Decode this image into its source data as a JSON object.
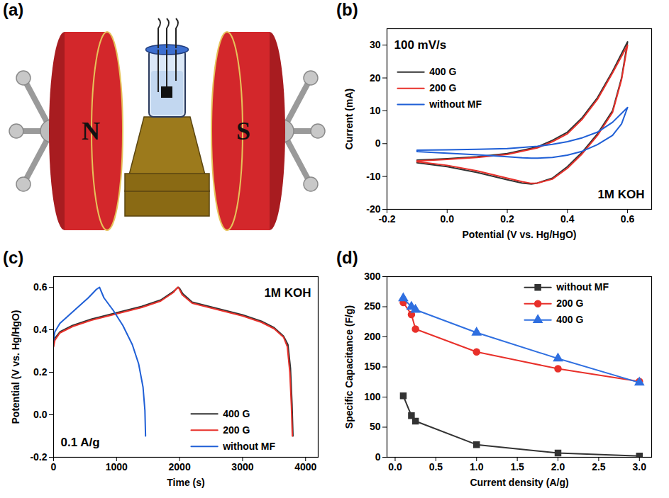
{
  "chart_data": [
    {
      "type": "diagram",
      "panel": "(a)",
      "labels": [
        "N",
        "S"
      ]
    },
    {
      "type": "line",
      "panel": "(b)",
      "annotations": [
        "100 mV/s",
        "1M KOH"
      ],
      "x_label": "Potential (V vs. Hg/HgO)",
      "y_label": "Current (mA)",
      "xlim": [
        -0.2,
        0.68
      ],
      "xticks": [
        -0.2,
        {
          "value": 0,
          "label": "0.0"
        },
        0.2,
        0.4,
        0.6
      ],
      "ylim": [
        -20,
        35
      ],
      "yticks": [
        -20,
        -10,
        0,
        10,
        20,
        30
      ],
      "grid": false,
      "legend": "top-left",
      "series": [
        {
          "name": "400 G",
          "color": "#333333",
          "x": [
            -0.1,
            0.0,
            0.1,
            0.2,
            0.3,
            0.35,
            0.4,
            0.45,
            0.5,
            0.55,
            0.6,
            0.58,
            0.55,
            0.5,
            0.45,
            0.4,
            0.35,
            0.3,
            0.28,
            0.25,
            0.2,
            0.1,
            0.0,
            -0.1,
            -0.1
          ],
          "values": [
            -5,
            -4.6,
            -4,
            -3,
            -1,
            1,
            3.5,
            8,
            14,
            22,
            31,
            20,
            10,
            3,
            -2.5,
            -7,
            -10.5,
            -12,
            -12.3,
            -12,
            -11,
            -8.8,
            -7,
            -5.8,
            -5
          ]
        },
        {
          "name": "200 G",
          "color": "#e8302a",
          "x": [
            -0.1,
            0.0,
            0.1,
            0.2,
            0.3,
            0.35,
            0.4,
            0.45,
            0.5,
            0.55,
            0.6,
            0.58,
            0.55,
            0.5,
            0.45,
            0.4,
            0.35,
            0.3,
            0.28,
            0.25,
            0.2,
            0.1,
            0.0,
            -0.1,
            -0.1
          ],
          "values": [
            -5.3,
            -4.8,
            -4.2,
            -3.3,
            -1.3,
            0.6,
            3,
            7.5,
            13.5,
            21.5,
            30,
            19.5,
            9.5,
            2.5,
            -3,
            -7.5,
            -10.8,
            -12,
            -12.1,
            -11.6,
            -10.5,
            -8.3,
            -6.6,
            -5.5,
            -5.3
          ]
        },
        {
          "name": "without MF",
          "color": "#1f5fd6",
          "x": [
            -0.1,
            0.0,
            0.1,
            0.2,
            0.3,
            0.35,
            0.4,
            0.45,
            0.5,
            0.55,
            0.6,
            0.58,
            0.55,
            0.5,
            0.45,
            0.4,
            0.35,
            0.3,
            0.28,
            0.25,
            0.2,
            0.1,
            0.0,
            -0.1,
            -0.1
          ],
          "values": [
            -2,
            -1.9,
            -1.7,
            -1.5,
            -0.8,
            -0.2,
            0.6,
            1.8,
            3.5,
            6.5,
            11,
            6,
            2.5,
            -0.3,
            -2.3,
            -3.5,
            -4.2,
            -4.4,
            -4.4,
            -4.3,
            -4,
            -3.4,
            -2.9,
            -2.4,
            -2
          ]
        }
      ]
    },
    {
      "type": "line",
      "panel": "(c)",
      "annotations": [
        "1M KOH",
        "0.1 A/g"
      ],
      "x_label": "Time (s)",
      "y_label": "Potential (V vs. Hg/HgO)",
      "xlim": [
        0,
        4200
      ],
      "xticks": [
        0,
        1000,
        2000,
        3000,
        4000
      ],
      "ylim": [
        -0.2,
        0.65
      ],
      "yticks": [
        -0.2,
        {
          "value": 0,
          "label": "0.0"
        },
        0.2,
        0.4,
        0.6
      ],
      "grid": false,
      "legend": "bottom-right",
      "series": [
        {
          "name": "400 G",
          "color": "#333333",
          "x": [
            0,
            20,
            100,
            300,
            600,
            1000,
            1400,
            1700,
            1900,
            1980,
            2000,
            2050,
            2200,
            2600,
            3000,
            3300,
            3500,
            3650,
            3720,
            3760,
            3785,
            3800
          ],
          "values": [
            0.33,
            0.36,
            0.39,
            0.42,
            0.45,
            0.48,
            0.51,
            0.54,
            0.58,
            0.6,
            0.595,
            0.57,
            0.53,
            0.5,
            0.47,
            0.44,
            0.41,
            0.37,
            0.33,
            0.22,
            0.05,
            -0.1
          ]
        },
        {
          "name": "200 G",
          "color": "#e8302a",
          "x": [
            0,
            20,
            100,
            300,
            600,
            1000,
            1400,
            1700,
            1900,
            1970,
            1990,
            2040,
            2200,
            2600,
            3000,
            3300,
            3500,
            3650,
            3710,
            3750,
            3775,
            3790
          ],
          "values": [
            0.32,
            0.35,
            0.385,
            0.415,
            0.445,
            0.475,
            0.505,
            0.535,
            0.575,
            0.6,
            0.595,
            0.565,
            0.525,
            0.495,
            0.465,
            0.435,
            0.405,
            0.365,
            0.32,
            0.2,
            0.04,
            -0.1
          ]
        },
        {
          "name": "without MF",
          "color": "#1f5fd6",
          "x": [
            0,
            20,
            100,
            250,
            400,
            550,
            680,
            730,
            750,
            800,
            950,
            1100,
            1250,
            1350,
            1420,
            1450,
            1460
          ],
          "values": [
            0.35,
            0.39,
            0.43,
            0.47,
            0.51,
            0.55,
            0.59,
            0.6,
            0.585,
            0.55,
            0.49,
            0.42,
            0.33,
            0.24,
            0.13,
            0.02,
            -0.1
          ]
        }
      ]
    },
    {
      "type": "line",
      "panel": "(d)",
      "x_label": "Current density (A/g)",
      "y_label": "Specific Capacitance (F/g)",
      "x": [
        0.1,
        0.2,
        0.25,
        1,
        2,
        3
      ],
      "xlim": [
        -0.1,
        3.15
      ],
      "xticks": [
        {
          "value": 0,
          "label": "0.0"
        },
        0.5,
        {
          "value": 1,
          "label": "1.0"
        },
        1.5,
        {
          "value": 2,
          "label": "2.0"
        },
        2.5,
        {
          "value": 3,
          "label": "3.0"
        }
      ],
      "ylim": [
        0,
        300
      ],
      "yticks": [
        0,
        50,
        100,
        150,
        200,
        250,
        300
      ],
      "grid": false,
      "legend": "top-right",
      "series": [
        {
          "name": "without MF",
          "color": "#333333",
          "marker": "square",
          "values": [
            102,
            69,
            60,
            21,
            7,
            2
          ]
        },
        {
          "name": "200 G",
          "color": "#e8302a",
          "marker": "circle",
          "values": [
            257,
            237,
            213,
            175,
            147,
            126
          ]
        },
        {
          "name": "400 G",
          "color": "#2f6fe0",
          "marker": "triangle",
          "values": [
            264,
            250,
            245,
            207,
            164,
            124
          ]
        }
      ]
    }
  ]
}
